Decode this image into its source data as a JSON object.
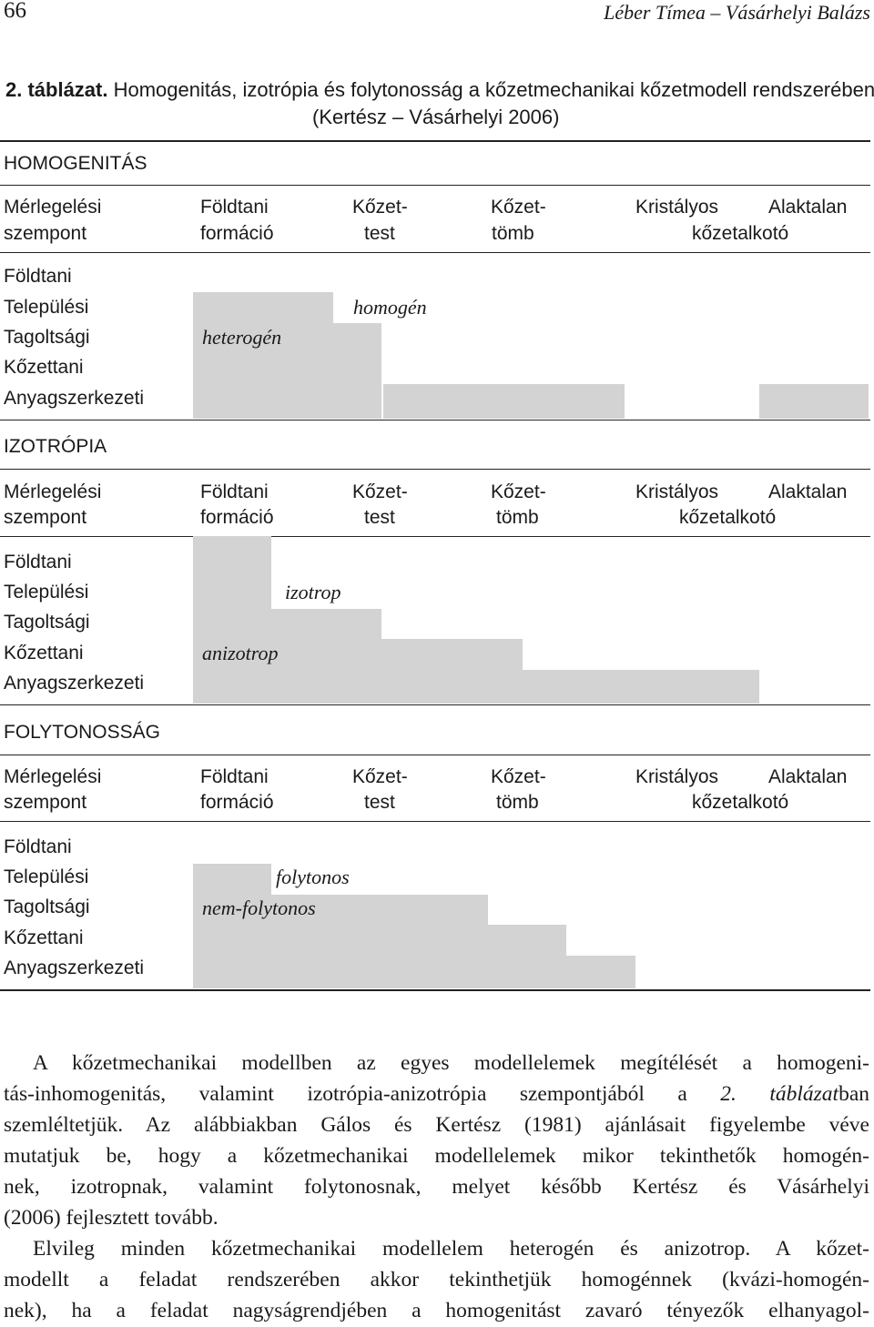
{
  "page": {
    "number": "66",
    "running_head": "Léber Tímea – Vásárhelyi Balázs"
  },
  "caption": {
    "label": "2. táblázat.",
    "text": "Homogenitás, izotrópia és folytonosság a kőzetmechanikai kőzetmodell rendszerében",
    "source": "(Kertész – Vásárhelyi 2006)"
  },
  "header": {
    "c0a": "Mérlegelési",
    "c0b": "szempont",
    "c1a": "Földtani",
    "c1b": "formáció",
    "c2a": "Kőzet-",
    "c2b": "test",
    "c3a": "Kőzet-",
    "c3b": "tömb",
    "c4a": "Kristályos",
    "c5a": "Alaktalan",
    "c45b": "kőzetalkotó"
  },
  "rows": [
    "Földtani",
    "Települési",
    "Tagoltsági",
    "Kőzettani",
    "Anyagszerkezeti"
  ],
  "sections": {
    "homogenitas": {
      "title": "HOMOGENITÁS",
      "label_a": "homogén",
      "label_b": "heterogén"
    },
    "izotropia": {
      "title": "IZOTRÓPIA",
      "label_a": "izotrop",
      "label_b": "anizotrop"
    },
    "folytonossag": {
      "title": "FOLYTONOSSÁG",
      "label_a": "folytonos",
      "label_b": "nem-folytonos"
    }
  },
  "body": {
    "p1_lines": [
      "A kőzetmechanikai modellben az egyes modellelemek megítélését a homogeni-",
      "tás-inhomogenitás, valamint izotrópia-anizotrópia szempontjából a ",
      "szemléltetjük. Az alábbiakban Gálos és Kertész (1981) ajánlásait figyelembe véve",
      "mutatjuk be, hogy a kőzetmechanikai modellelemek mikor tekinthetők homogén-",
      "nek, izotropnak, valamint folytonosnak, melyet később Kertész és Vásárhelyi",
      "(2006) fejlesztett tovább."
    ],
    "p1_ref": "2. táblázat",
    "p1_ref_suffix": "ban",
    "p2_lines": [
      "Elvileg minden kőzetmechanikai modellelem heterogén és anizotrop. A kőzet-",
      "modellt a feladat rendszerében akkor tekinthetjük homogénnek (kvázi-homogén-",
      "nek), ha a feladat nagyságrendjében a homogenitást zavaró tényezők elhanyagol-"
    ]
  }
}
